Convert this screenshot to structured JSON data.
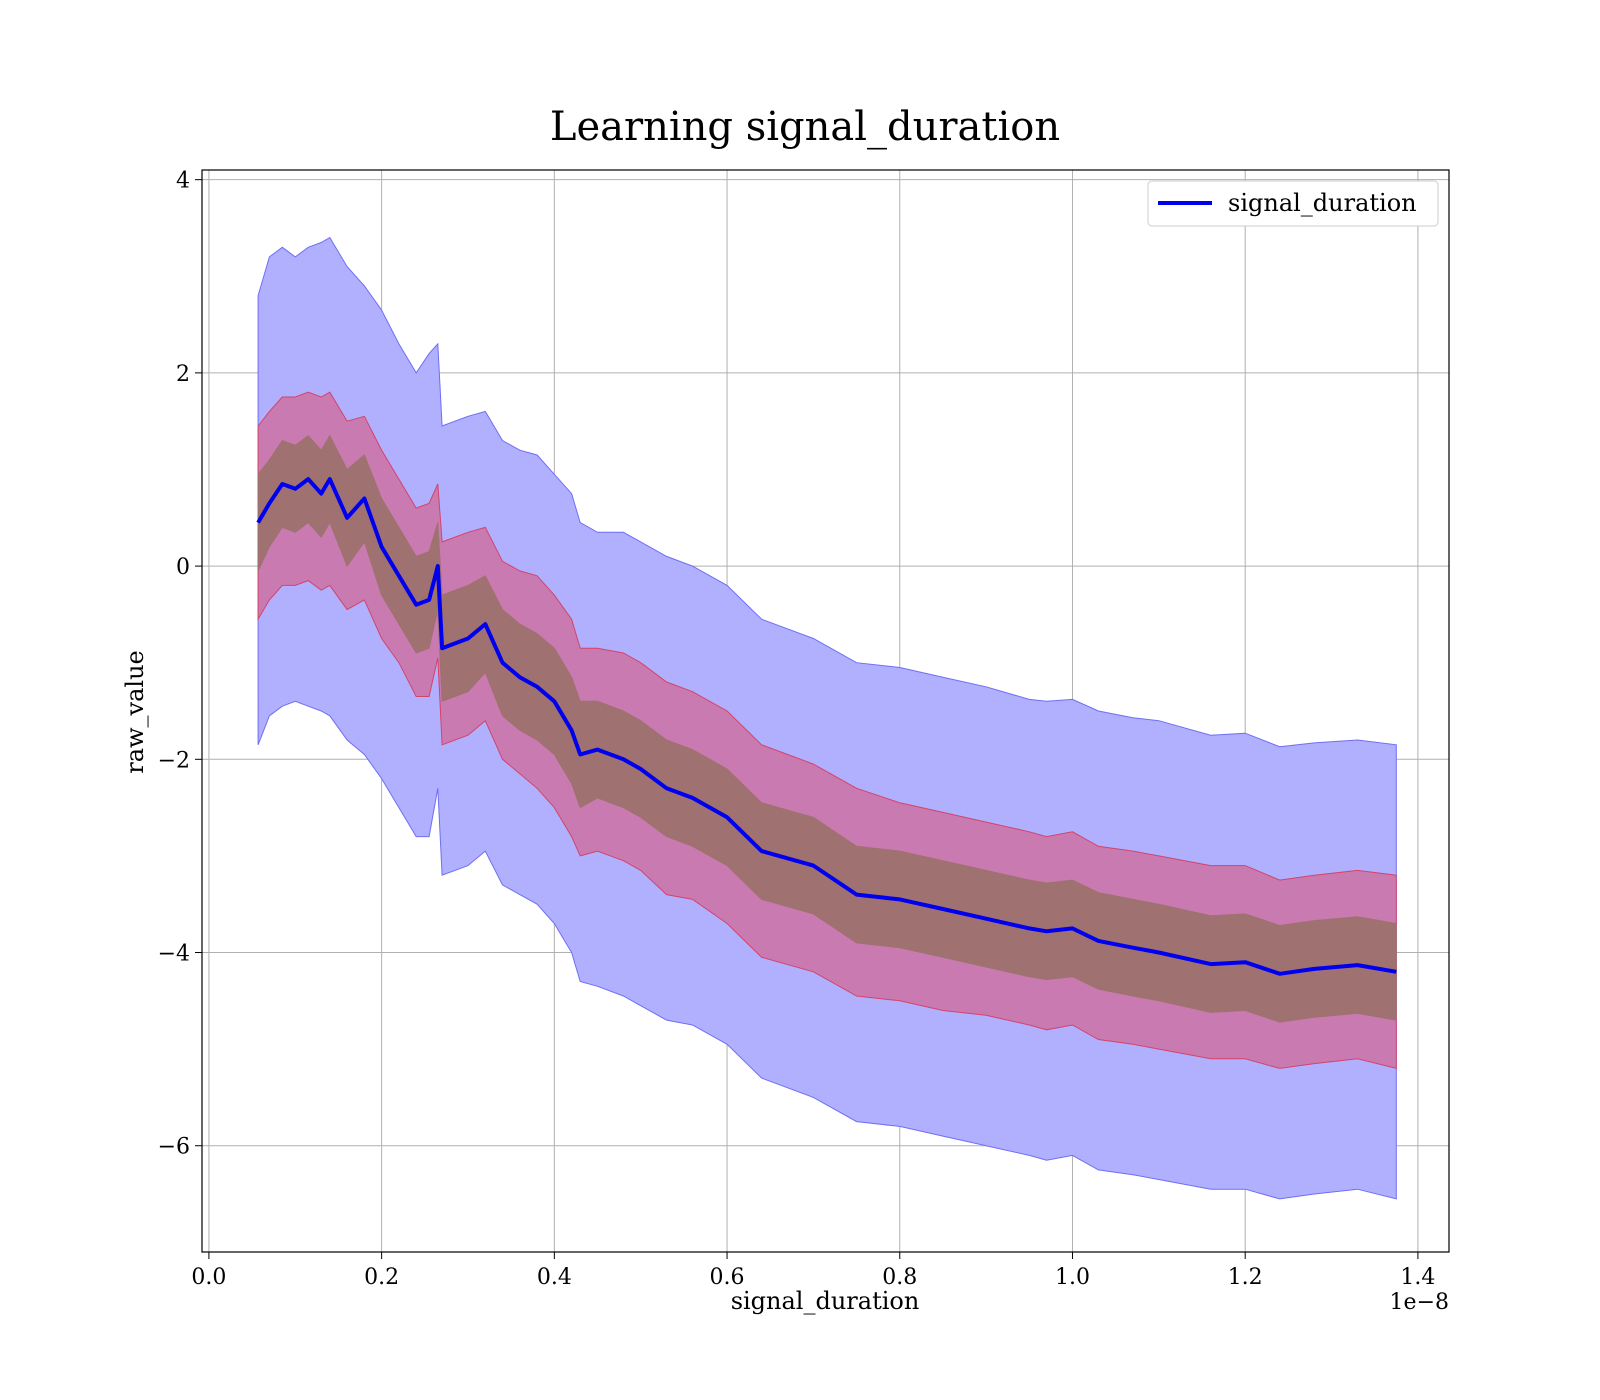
{
  "chart_data": {
    "type": "area",
    "title": "Learning signal_duration",
    "xlabel": "signal_duration",
    "ylabel": "raw_value",
    "x_offset_label": "1e−8",
    "xlim": [
      -0.008,
      1.436
    ],
    "ylim": [
      -7.1,
      4.1
    ],
    "x_ticks": [
      0.0,
      0.2,
      0.4,
      0.6,
      0.8,
      1.0,
      1.2,
      1.4
    ],
    "x_tick_labels": [
      "0.0",
      "0.2",
      "0.4",
      "0.6",
      "0.8",
      "1.0",
      "1.2",
      "1.4"
    ],
    "y_ticks": [
      4,
      2,
      0,
      -2,
      -4,
      -6
    ],
    "y_tick_labels": [
      "4",
      "2",
      "0",
      "−2",
      "−4",
      "−6"
    ],
    "grid": true,
    "legend_position": "top-right",
    "colors": {
      "line": "#0000ee",
      "outer_band": "#b0b0ff",
      "outer_band_edge": "#6e6ef5",
      "middle_band": "#c97bb1",
      "middle_band_edge": "#d4436a",
      "inner_band": "#a07171"
    },
    "series": [
      {
        "name": "signal_duration",
        "x": [
          0.057,
          0.07,
          0.085,
          0.1,
          0.115,
          0.13,
          0.14,
          0.16,
          0.18,
          0.2,
          0.22,
          0.24,
          0.255,
          0.265,
          0.27,
          0.3,
          0.32,
          0.34,
          0.36,
          0.38,
          0.4,
          0.42,
          0.43,
          0.45,
          0.48,
          0.5,
          0.53,
          0.56,
          0.6,
          0.64,
          0.7,
          0.75,
          0.8,
          0.85,
          0.9,
          0.95,
          0.97,
          1.0,
          1.03,
          1.07,
          1.1,
          1.16,
          1.2,
          1.24,
          1.28,
          1.33,
          1.375
        ],
        "y": [
          0.45,
          0.65,
          0.85,
          0.8,
          0.9,
          0.75,
          0.9,
          0.5,
          0.7,
          0.2,
          -0.1,
          -0.4,
          -0.35,
          0.0,
          -0.85,
          -0.75,
          -0.6,
          -1.0,
          -1.15,
          -1.25,
          -1.4,
          -1.7,
          -1.95,
          -1.9,
          -2.0,
          -2.1,
          -2.3,
          -2.4,
          -2.6,
          -2.95,
          -3.1,
          -3.4,
          -3.45,
          -3.55,
          -3.65,
          -3.75,
          -3.78,
          -3.75,
          -3.88,
          -3.95,
          -4.0,
          -4.12,
          -4.1,
          -4.22,
          -4.17,
          -4.13,
          -4.2
        ],
        "outer_upper": [
          2.8,
          3.2,
          3.3,
          3.2,
          3.3,
          3.35,
          3.4,
          3.1,
          2.9,
          2.65,
          2.3,
          2.0,
          2.2,
          2.3,
          1.45,
          1.55,
          1.6,
          1.3,
          1.2,
          1.15,
          0.95,
          0.75,
          0.45,
          0.35,
          0.35,
          0.25,
          0.1,
          0.0,
          -0.2,
          -0.55,
          -0.75,
          -1.0,
          -1.05,
          -1.15,
          -1.25,
          -1.38,
          -1.4,
          -1.38,
          -1.5,
          -1.57,
          -1.6,
          -1.75,
          -1.73,
          -1.87,
          -1.83,
          -1.8,
          -1.85
        ],
        "outer_lower": [
          -1.85,
          -1.55,
          -1.45,
          -1.4,
          -1.45,
          -1.5,
          -1.55,
          -1.8,
          -1.95,
          -2.2,
          -2.5,
          -2.8,
          -2.8,
          -2.3,
          -3.2,
          -3.1,
          -2.95,
          -3.3,
          -3.4,
          -3.5,
          -3.7,
          -4.0,
          -4.3,
          -4.35,
          -4.45,
          -4.55,
          -4.7,
          -4.75,
          -4.95,
          -5.3,
          -5.5,
          -5.75,
          -5.8,
          -5.9,
          -6.0,
          -6.1,
          -6.15,
          -6.1,
          -6.25,
          -6.3,
          -6.35,
          -6.45,
          -6.45,
          -6.55,
          -6.5,
          -6.45,
          -6.55
        ],
        "middle_upper": [
          1.45,
          1.6,
          1.75,
          1.75,
          1.8,
          1.75,
          1.8,
          1.5,
          1.55,
          1.2,
          0.9,
          0.6,
          0.65,
          0.85,
          0.25,
          0.35,
          0.4,
          0.05,
          -0.05,
          -0.1,
          -0.3,
          -0.55,
          -0.85,
          -0.85,
          -0.9,
          -1.0,
          -1.2,
          -1.3,
          -1.5,
          -1.85,
          -2.05,
          -2.3,
          -2.45,
          -2.55,
          -2.65,
          -2.75,
          -2.8,
          -2.75,
          -2.9,
          -2.95,
          -3.0,
          -3.1,
          -3.1,
          -3.25,
          -3.2,
          -3.15,
          -3.2
        ],
        "middle_lower": [
          -0.55,
          -0.35,
          -0.2,
          -0.2,
          -0.15,
          -0.25,
          -0.2,
          -0.45,
          -0.35,
          -0.75,
          -1.0,
          -1.35,
          -1.35,
          -0.95,
          -1.85,
          -1.75,
          -1.6,
          -2.0,
          -2.15,
          -2.3,
          -2.5,
          -2.8,
          -3.0,
          -2.95,
          -3.05,
          -3.15,
          -3.4,
          -3.45,
          -3.7,
          -4.05,
          -4.2,
          -4.45,
          -4.5,
          -4.6,
          -4.65,
          -4.75,
          -4.8,
          -4.75,
          -4.9,
          -4.95,
          -5.0,
          -5.1,
          -5.1,
          -5.2,
          -5.15,
          -5.1,
          -5.2
        ],
        "inner_upper": [
          0.95,
          1.1,
          1.3,
          1.25,
          1.35,
          1.2,
          1.35,
          1.0,
          1.15,
          0.7,
          0.4,
          0.1,
          0.15,
          0.45,
          -0.3,
          -0.2,
          -0.1,
          -0.45,
          -0.6,
          -0.7,
          -0.85,
          -1.15,
          -1.4,
          -1.4,
          -1.5,
          -1.6,
          -1.8,
          -1.9,
          -2.1,
          -2.45,
          -2.6,
          -2.9,
          -2.95,
          -3.05,
          -3.15,
          -3.25,
          -3.28,
          -3.25,
          -3.38,
          -3.45,
          -3.5,
          -3.62,
          -3.6,
          -3.72,
          -3.67,
          -3.63,
          -3.7
        ],
        "inner_lower": [
          -0.05,
          0.2,
          0.4,
          0.35,
          0.45,
          0.3,
          0.45,
          0.0,
          0.25,
          -0.3,
          -0.6,
          -0.9,
          -0.85,
          -0.45,
          -1.4,
          -1.3,
          -1.1,
          -1.55,
          -1.7,
          -1.8,
          -1.95,
          -2.25,
          -2.5,
          -2.4,
          -2.5,
          -2.6,
          -2.8,
          -2.9,
          -3.1,
          -3.45,
          -3.6,
          -3.9,
          -3.95,
          -4.05,
          -4.15,
          -4.25,
          -4.28,
          -4.25,
          -4.38,
          -4.45,
          -4.5,
          -4.62,
          -4.6,
          -4.72,
          -4.67,
          -4.63,
          -4.7
        ]
      }
    ]
  }
}
